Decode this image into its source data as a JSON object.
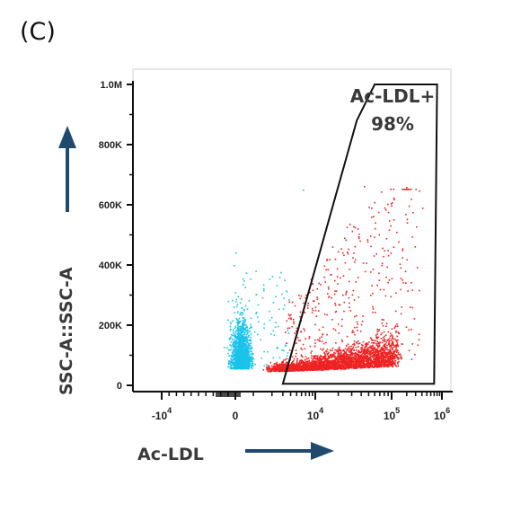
{
  "panel_label": "(C)",
  "colors": {
    "arrow": "#1f4a6e",
    "population_negative": "#19c3ea",
    "population_positive": "#ee2323",
    "gate": "#111111"
  },
  "chart_data": {
    "type": "scatter",
    "title": "",
    "xlabel": "Ac-LDL",
    "ylabel": "SSC-A::SSC-A",
    "x_scale": "biexponential",
    "y_scale": "linear",
    "xlim": [
      -20000,
      1000000
    ],
    "ylim": [
      0,
      1000000
    ],
    "grid": false,
    "y_ticks": [
      {
        "value": 0,
        "label": "0"
      },
      {
        "value": 200000,
        "label": "200K"
      },
      {
        "value": 400000,
        "label": "400K"
      },
      {
        "value": 600000,
        "label": "600K"
      },
      {
        "value": 800000,
        "label": "800K"
      },
      {
        "value": 1000000,
        "label": "1.0M"
      }
    ],
    "x_ticks": [
      {
        "value": -10000,
        "base": "-10",
        "exp": "4"
      },
      {
        "value": 0,
        "base": "0",
        "exp": ""
      },
      {
        "value": 10000,
        "base": "10",
        "exp": "4"
      },
      {
        "value": 100000,
        "base": "10",
        "exp": "5"
      },
      {
        "value": 1000000,
        "base": "10",
        "exp": "6"
      }
    ],
    "gate": {
      "name": "Ac-LDL+",
      "percent": "98%",
      "vertices": [
        [
          3000,
          5000
        ],
        [
          700000,
          5000
        ],
        [
          800000,
          1000000
        ],
        [
          60000,
          1000000
        ],
        [
          35000,
          880000
        ]
      ]
    },
    "series": [
      {
        "color": "#19c3ea",
        "x_range": [
          -5000,
          4000
        ],
        "y_range": [
          20000,
          350000
        ]
      },
      {
        "color": "#ee2323",
        "x_range": [
          3000,
          600000
        ],
        "y_range": [
          15000,
          650000
        ]
      }
    ]
  }
}
